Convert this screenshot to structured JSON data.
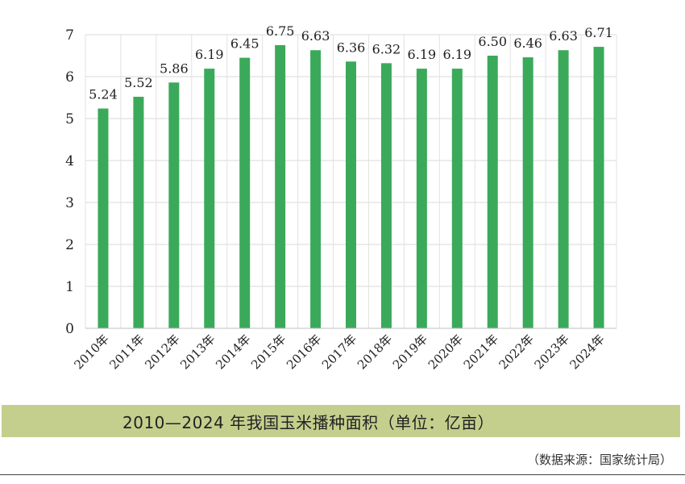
{
  "chart_data": {
    "type": "bar",
    "title": "2010—2024 年我国玉米播种面积（单位：亿亩）",
    "categories": [
      "2010年",
      "2011年",
      "2012年",
      "2013年",
      "2014年",
      "2015年",
      "2016年",
      "2017年",
      "2018年",
      "2019年",
      "2020年",
      "2021年",
      "2022年",
      "2023年",
      "2024年"
    ],
    "values": [
      5.24,
      5.52,
      5.86,
      6.19,
      6.45,
      6.75,
      6.63,
      6.36,
      6.32,
      6.19,
      6.19,
      6.5,
      6.46,
      6.63,
      6.71
    ],
    "value_labels": [
      "5.24",
      "5.52",
      "5.86",
      "6.19",
      "6.45",
      "6.75",
      "6.63",
      "6.36",
      "6.32",
      "6.19",
      "6.19",
      "6.50",
      "6.46",
      "6.63",
      "6.71"
    ],
    "yticks": [
      "0",
      "1",
      "2",
      "3",
      "4",
      "5",
      "6",
      "7"
    ],
    "ylim": [
      0,
      7
    ],
    "xlabel": "",
    "ylabel": "",
    "grid": true,
    "bar_color": "#3aaa5a"
  },
  "source": "（数据来源：国家统计局）"
}
